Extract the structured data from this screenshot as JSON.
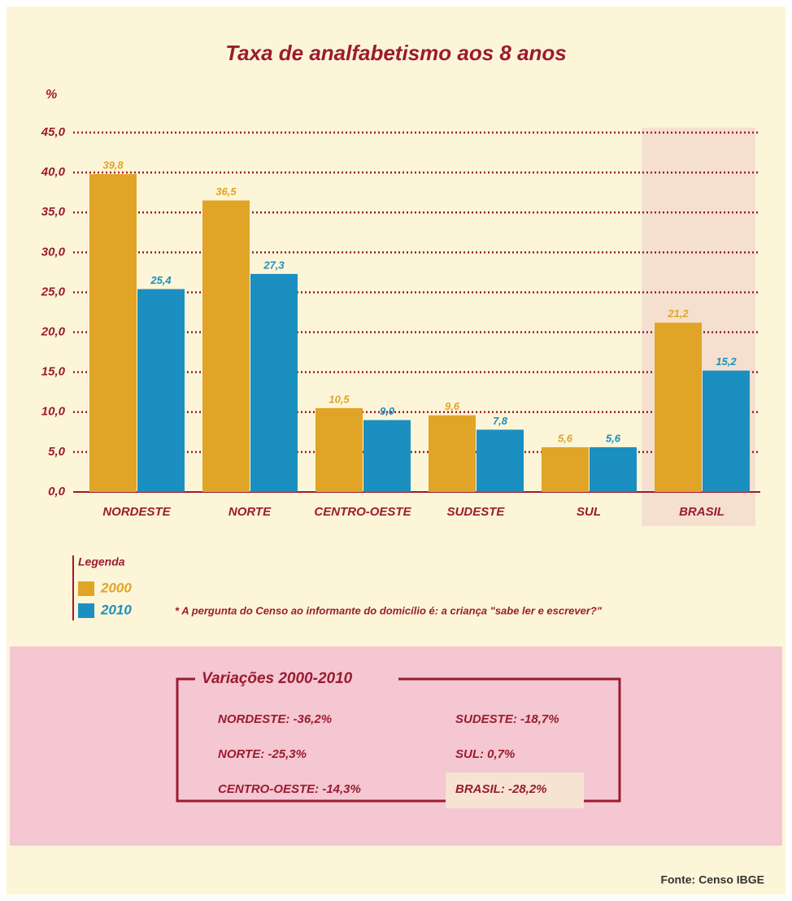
{
  "chart_data": {
    "type": "bar",
    "title": "Taxa de analfabetismo aos 8 anos",
    "y_label": "%",
    "categories": [
      "NORDESTE",
      "NORTE",
      "CENTRO-OESTE",
      "SUDESTE",
      "SUL",
      "BRASIL"
    ],
    "series": [
      {
        "name": "2000",
        "color": "#e0a526",
        "values": [
          39.8,
          36.5,
          10.5,
          9.6,
          5.6,
          21.2
        ],
        "value_labels": [
          "39,8",
          "36,5",
          "10,5",
          "9,6",
          "5,6",
          "21,2"
        ]
      },
      {
        "name": "2010",
        "color": "#1b8fc0",
        "values": [
          25.4,
          27.3,
          9.0,
          7.8,
          5.6,
          15.2
        ],
        "value_labels": [
          "25,4",
          "27,3",
          "9,0",
          "7,8",
          "5,6",
          "15,2"
        ]
      }
    ],
    "ylim": [
      0,
      45
    ],
    "yticks": [
      {
        "value": 0,
        "label": "0,0"
      },
      {
        "value": 5,
        "label": "5,0"
      },
      {
        "value": 10,
        "label": "10,0"
      },
      {
        "value": 15,
        "label": "15,0"
      },
      {
        "value": 20,
        "label": "20,0"
      },
      {
        "value": 25,
        "label": "25,0"
      },
      {
        "value": 30,
        "label": "30,0"
      },
      {
        "value": 35,
        "label": "35,0"
      },
      {
        "value": 40,
        "label": "40,0"
      },
      {
        "value": 45,
        "label": "45,0"
      }
    ],
    "grid": true,
    "highlight": "BRASIL",
    "legend_title": "Legenda",
    "note": "* A pergunta do Censo ao informante do domicílio é: a criança \"sabe ler e escrever?\""
  },
  "variations": {
    "title": "Variações 2000-2010",
    "items": [
      "NORDESTE: -36,2%",
      "NORTE: -25,3%",
      "CENTRO-OESTE: -14,3%",
      "SUDESTE: -18,7%",
      "SUL: 0,7%",
      "BRASIL: -28,2%"
    ]
  },
  "source": "Fonte: Censo IBGE"
}
